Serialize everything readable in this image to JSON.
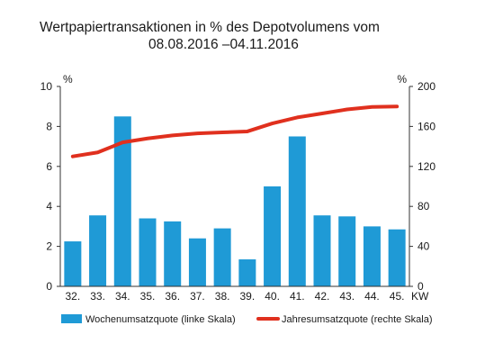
{
  "chart_data": {
    "type": "bar",
    "title_line1": "Wertpapiertransaktionen in % des Depotvolumens vom",
    "title_line2": "08.08.2016 –04.11.2016",
    "y_left_unit": "%",
    "y_right_unit": "%",
    "x_unit": "KW",
    "categories": [
      "32.",
      "33.",
      "34.",
      "35.",
      "36.",
      "37.",
      "38.",
      "39.",
      "40.",
      "41.",
      "42.",
      "43.",
      "44.",
      "45."
    ],
    "y_left_ticks": [
      "0",
      "2",
      "4",
      "6",
      "8",
      "10"
    ],
    "y_right_ticks": [
      "0",
      "40",
      "80",
      "120",
      "160",
      "200"
    ],
    "ylim_left": [
      0,
      10
    ],
    "ylim_right": [
      0,
      200
    ],
    "series": [
      {
        "name": "Wochenumsatzquote (linke Skala)",
        "type": "bar",
        "axis": "left",
        "color": "#1f9ad6",
        "values": [
          2.25,
          3.55,
          8.5,
          3.4,
          3.25,
          2.4,
          2.9,
          1.35,
          5.0,
          7.5,
          3.55,
          3.5,
          3.0,
          2.85
        ]
      },
      {
        "name": "Jahresumsatzquote (rechte Skala)",
        "type": "line",
        "axis": "right",
        "color": "#e0301e",
        "values": [
          130,
          134,
          144,
          148,
          151,
          153,
          154,
          155,
          163,
          169,
          173,
          177,
          179.5,
          180
        ]
      }
    ],
    "grid": false,
    "legend_position": "bottom"
  }
}
